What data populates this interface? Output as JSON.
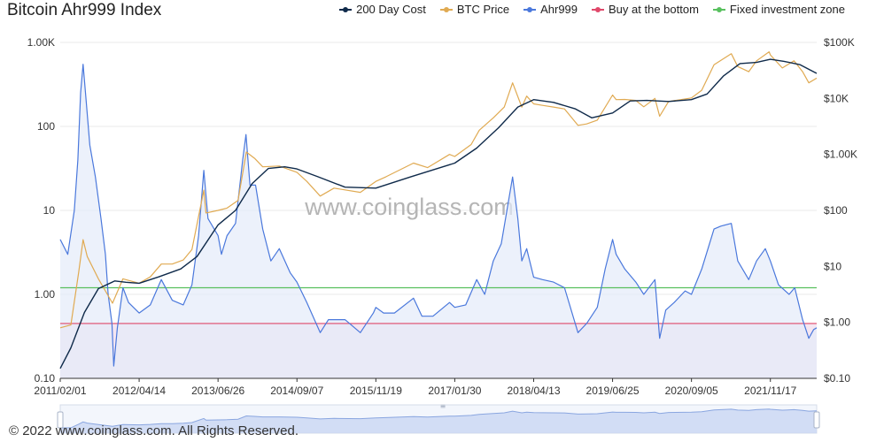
{
  "title": "Bitcoin Ahr999 Index",
  "footer": "© 2022 www.coinglass.com. All Rights Reserved.",
  "watermark": "www.coinglass.com",
  "colors": {
    "cost": "#0f2a4a",
    "price": "#e0aa52",
    "ahr": "#4a78dc",
    "ahr_fill": "#e4ebfa",
    "bottom": "#e0486a",
    "bottom_fill": "#f5e6f1",
    "fixed": "#58c05e",
    "grid": "#e8e8e8",
    "axis": "#333333"
  },
  "legend": [
    {
      "label": "200 Day Cost",
      "color": "#0f2a4a"
    },
    {
      "label": "BTC Price",
      "color": "#e0aa52"
    },
    {
      "label": "Ahr999",
      "color": "#4a78dc"
    },
    {
      "label": "Buy at the bottom",
      "color": "#e0486a"
    },
    {
      "label": "Fixed investment zone",
      "color": "#58c05e"
    }
  ],
  "chart_data": {
    "type": "line",
    "title": "Bitcoin Ahr999 Index",
    "x_start": "2011/02/01",
    "x_end": "2022/08/01",
    "x_tick_labels": [
      "2011/02/01",
      "2012/04/14",
      "2013/06/26",
      "2014/09/07",
      "2015/11/19",
      "2017/01/30",
      "2018/04/13",
      "2019/06/25",
      "2020/09/05",
      "2021/11/17"
    ],
    "y_left": {
      "scale": "log",
      "range": [
        0.1,
        1000
      ],
      "tick_labels": [
        "0.10",
        "1.00",
        "10",
        "100",
        "1.00K"
      ]
    },
    "y_right": {
      "scale": "log",
      "range": [
        0.1,
        100000
      ],
      "tick_labels": [
        "$0.10",
        "$1.00",
        "$10",
        "$100",
        "$1.00K",
        "$10K",
        "$100K"
      ]
    },
    "thresholds": [
      {
        "name": "Buy at the bottom",
        "value": 0.45
      },
      {
        "name": "Fixed investment zone",
        "value": 1.2
      }
    ],
    "series": [
      {
        "name": "Ahr999",
        "axis": "left",
        "points": [
          [
            "2011/02/01",
            4.5
          ],
          [
            "2011/03/15",
            3.0
          ],
          [
            "2011/04/20",
            10.0
          ],
          [
            "2011/05/10",
            40.0
          ],
          [
            "2011/05/25",
            250.0
          ],
          [
            "2011/06/08",
            550.0
          ],
          [
            "2011/06/25",
            200.0
          ],
          [
            "2011/07/15",
            60.0
          ],
          [
            "2011/08/15",
            25.0
          ],
          [
            "2011/09/15",
            8.0
          ],
          [
            "2011/10/10",
            3.0
          ],
          [
            "2011/10/25",
            1.0
          ],
          [
            "2011/11/15",
            0.45
          ],
          [
            "2011/11/25",
            0.14
          ],
          [
            "2011/12/15",
            0.4
          ],
          [
            "2012/01/15",
            1.2
          ],
          [
            "2012/02/15",
            0.8
          ],
          [
            "2012/04/14",
            0.6
          ],
          [
            "2012/06/15",
            0.75
          ],
          [
            "2012/08/15",
            1.5
          ],
          [
            "2012/10/15",
            0.85
          ],
          [
            "2012/12/15",
            0.75
          ],
          [
            "2013/02/01",
            1.3
          ],
          [
            "2013/03/10",
            5.0
          ],
          [
            "2013/04/08",
            30.0
          ],
          [
            "2013/05/01",
            8.0
          ],
          [
            "2013/06/26",
            5.0
          ],
          [
            "2013/07/15",
            3.0
          ],
          [
            "2013/08/15",
            5.0
          ],
          [
            "2013/10/01",
            7.0
          ],
          [
            "2013/11/10",
            40.0
          ],
          [
            "2013/11/28",
            80.0
          ],
          [
            "2013/12/20",
            20.0
          ],
          [
            "2014/01/20",
            20.0
          ],
          [
            "2014/03/01",
            6.0
          ],
          [
            "2014/04/15",
            2.5
          ],
          [
            "2014/06/01",
            3.5
          ],
          [
            "2014/08/01",
            1.8
          ],
          [
            "2014/09/07",
            1.4
          ],
          [
            "2014/11/01",
            0.8
          ],
          [
            "2015/01/14",
            0.35
          ],
          [
            "2015/03/01",
            0.5
          ],
          [
            "2015/06/01",
            0.5
          ],
          [
            "2015/08/25",
            0.35
          ],
          [
            "2015/11/05",
            0.6
          ],
          [
            "2015/11/19",
            0.7
          ],
          [
            "2016/01/01",
            0.6
          ],
          [
            "2016/03/01",
            0.6
          ],
          [
            "2016/06/15",
            0.9
          ],
          [
            "2016/08/01",
            0.55
          ],
          [
            "2016/10/01",
            0.55
          ],
          [
            "2017/01/01",
            0.8
          ],
          [
            "2017/01/30",
            0.7
          ],
          [
            "2017/04/01",
            0.75
          ],
          [
            "2017/06/01",
            1.5
          ],
          [
            "2017/07/15",
            1.0
          ],
          [
            "2017/09/01",
            2.5
          ],
          [
            "2017/10/15",
            4.0
          ],
          [
            "2017/12/17",
            25.0
          ],
          [
            "2018/01/15",
            8.0
          ],
          [
            "2018/02/06",
            2.5
          ],
          [
            "2018/03/05",
            3.5
          ],
          [
            "2018/04/13",
            1.6
          ],
          [
            "2018/06/01",
            1.5
          ],
          [
            "2018/08/01",
            1.4
          ],
          [
            "2018/10/01",
            1.2
          ],
          [
            "2018/12/15",
            0.35
          ],
          [
            "2019/02/01",
            0.45
          ],
          [
            "2019/04/01",
            0.7
          ],
          [
            "2019/05/15",
            2.0
          ],
          [
            "2019/06/25",
            4.5
          ],
          [
            "2019/07/15",
            3.0
          ],
          [
            "2019/09/01",
            2.0
          ],
          [
            "2019/11/01",
            1.4
          ],
          [
            "2019/12/15",
            1.0
          ],
          [
            "2020/02/15",
            1.5
          ],
          [
            "2020/03/12",
            0.3
          ],
          [
            "2020/04/15",
            0.65
          ],
          [
            "2020/06/01",
            0.8
          ],
          [
            "2020/08/01",
            1.1
          ],
          [
            "2020/09/05",
            1.0
          ],
          [
            "2020/11/01",
            2.0
          ],
          [
            "2021/01/08",
            6.0
          ],
          [
            "2021/02/15",
            6.5
          ],
          [
            "2021/04/14",
            7.0
          ],
          [
            "2021/05/20",
            2.5
          ],
          [
            "2021/07/20",
            1.5
          ],
          [
            "2021/09/01",
            2.5
          ],
          [
            "2021/10/20",
            3.5
          ],
          [
            "2021/11/17",
            2.5
          ],
          [
            "2022/01/01",
            1.3
          ],
          [
            "2022/03/01",
            1.0
          ],
          [
            "2022/04/01",
            1.2
          ],
          [
            "2022/05/15",
            0.5
          ],
          [
            "2022/06/18",
            0.3
          ],
          [
            "2022/07/15",
            0.38
          ],
          [
            "2022/08/01",
            0.4
          ]
        ]
      },
      {
        "name": "BTC Price",
        "axis": "right",
        "points": [
          [
            "2011/02/01",
            0.8
          ],
          [
            "2011/04/01",
            0.9
          ],
          [
            "2011/05/15",
            8.0
          ],
          [
            "2011/06/08",
            30.0
          ],
          [
            "2011/07/01",
            15.0
          ],
          [
            "2011/09/01",
            6.0
          ],
          [
            "2011/11/18",
            2.2
          ],
          [
            "2012/01/15",
            6.0
          ],
          [
            "2012/04/14",
            5.0
          ],
          [
            "2012/06/15",
            6.5
          ],
          [
            "2012/08/15",
            11.0
          ],
          [
            "2012/10/15",
            11.0
          ],
          [
            "2012/12/15",
            13.0
          ],
          [
            "2013/02/01",
            20.0
          ],
          [
            "2013/04/08",
            230.0
          ],
          [
            "2013/04/20",
            90.0
          ],
          [
            "2013/06/26",
            100.0
          ],
          [
            "2013/08/15",
            110.0
          ],
          [
            "2013/10/15",
            150.0
          ],
          [
            "2013/11/30",
            1100.0
          ],
          [
            "2014/01/15",
            850.0
          ],
          [
            "2014/03/01",
            600.0
          ],
          [
            "2014/06/01",
            620.0
          ],
          [
            "2014/09/07",
            480.0
          ],
          [
            "2014/11/01",
            330.0
          ],
          [
            "2015/01/14",
            180.0
          ],
          [
            "2015/04/01",
            250.0
          ],
          [
            "2015/08/25",
            210.0
          ],
          [
            "2015/11/19",
            330.0
          ],
          [
            "2016/01/15",
            400.0
          ],
          [
            "2016/06/15",
            700.0
          ],
          [
            "2016/09/01",
            580.0
          ],
          [
            "2017/01/01",
            1000.0
          ],
          [
            "2017/01/30",
            920.0
          ],
          [
            "2017/05/01",
            1500.0
          ],
          [
            "2017/06/15",
            2700.0
          ],
          [
            "2017/09/01",
            4500.0
          ],
          [
            "2017/11/01",
            7000.0
          ],
          [
            "2017/12/17",
            19000.0
          ],
          [
            "2018/02/06",
            7000.0
          ],
          [
            "2018/03/05",
            11000.0
          ],
          [
            "2018/04/13",
            8000.0
          ],
          [
            "2018/06/01",
            7500.0
          ],
          [
            "2018/08/01",
            7000.0
          ],
          [
            "2018/10/01",
            6500.0
          ],
          [
            "2018/12/15",
            3300.0
          ],
          [
            "2019/02/01",
            3500.0
          ],
          [
            "2019/04/01",
            4100.0
          ],
          [
            "2019/06/25",
            11500.0
          ],
          [
            "2019/07/15",
            9500.0
          ],
          [
            "2019/09/01",
            9600.0
          ],
          [
            "2019/11/01",
            9200.0
          ],
          [
            "2019/12/15",
            7100.0
          ],
          [
            "2020/02/15",
            10000.0
          ],
          [
            "2020/03/12",
            4800.0
          ],
          [
            "2020/05/01",
            8800.0
          ],
          [
            "2020/09/05",
            10200.0
          ],
          [
            "2020/11/01",
            14000.0
          ],
          [
            "2021/01/08",
            40000.0
          ],
          [
            "2021/04/14",
            63000.0
          ],
          [
            "2021/05/20",
            37000.0
          ],
          [
            "2021/07/20",
            30000.0
          ],
          [
            "2021/09/01",
            47000.0
          ],
          [
            "2021/11/10",
            68000.0
          ],
          [
            "2021/11/17",
            60000.0
          ],
          [
            "2022/01/22",
            35000.0
          ],
          [
            "2022/03/28",
            47000.0
          ],
          [
            "2022/05/15",
            30000.0
          ],
          [
            "2022/06/18",
            19000.0
          ],
          [
            "2022/08/01",
            23000.0
          ]
        ]
      },
      {
        "name": "200 Day Cost",
        "axis": "right",
        "points": [
          [
            "2011/02/01",
            0.15
          ],
          [
            "2011/04/01",
            0.35
          ],
          [
            "2011/06/15",
            1.5
          ],
          [
            "2011/09/01",
            4.0
          ],
          [
            "2011/12/01",
            5.5
          ],
          [
            "2012/02/01",
            5.2
          ],
          [
            "2012/04/14",
            5.0
          ],
          [
            "2012/08/01",
            6.5
          ],
          [
            "2012/12/01",
            9.0
          ],
          [
            "2013/03/01",
            15.0
          ],
          [
            "2013/06/26",
            55.0
          ],
          [
            "2013/10/01",
            100.0
          ],
          [
            "2014/01/01",
            300.0
          ],
          [
            "2014/04/01",
            560.0
          ],
          [
            "2014/07/01",
            600.0
          ],
          [
            "2014/09/07",
            550.0
          ],
          [
            "2015/01/01",
            400.0
          ],
          [
            "2015/06/01",
            260.0
          ],
          [
            "2015/11/19",
            250.0
          ],
          [
            "2016/06/01",
            400.0
          ],
          [
            "2017/01/30",
            700.0
          ],
          [
            "2017/06/01",
            1300.0
          ],
          [
            "2017/10/01",
            3000.0
          ],
          [
            "2018/01/15",
            7000.0
          ],
          [
            "2018/04/13",
            9500.0
          ],
          [
            "2018/08/01",
            8500.0
          ],
          [
            "2018/12/01",
            6500.0
          ],
          [
            "2019/03/01",
            4500.0
          ],
          [
            "2019/06/25",
            5500.0
          ],
          [
            "2019/10/01",
            9000.0
          ],
          [
            "2020/01/01",
            9200.0
          ],
          [
            "2020/05/01",
            8800.0
          ],
          [
            "2020/09/05",
            9500.0
          ],
          [
            "2020/12/01",
            12000.0
          ],
          [
            "2021/03/01",
            25000.0
          ],
          [
            "2021/06/01",
            42000.0
          ],
          [
            "2021/09/01",
            44000.0
          ],
          [
            "2021/11/17",
            50000.0
          ],
          [
            "2022/02/01",
            46000.0
          ],
          [
            "2022/05/01",
            40000.0
          ],
          [
            "2022/08/01",
            28000.0
          ]
        ]
      }
    ]
  },
  "navigator": {
    "handle_label": "≡"
  }
}
